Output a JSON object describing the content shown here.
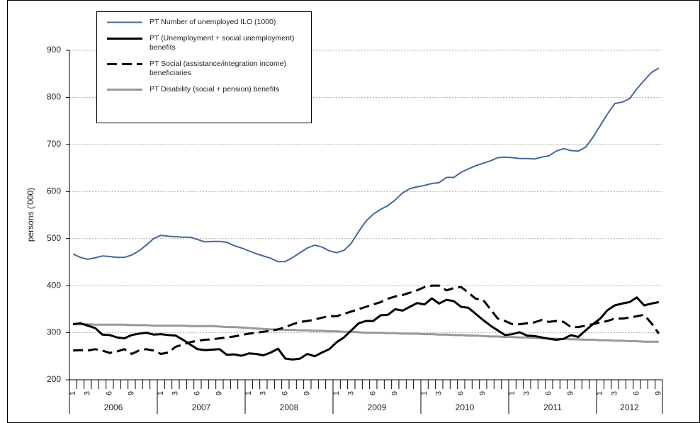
{
  "chart_data": {
    "type": "line",
    "ylabel": "persons ('000)",
    "ylim": [
      200,
      900
    ],
    "yticks": [
      200,
      300,
      400,
      500,
      600,
      700,
      800,
      900
    ],
    "grid": true,
    "categories": [
      "1",
      null,
      "3",
      null,
      null,
      "6",
      null,
      null,
      "9",
      null,
      null,
      null,
      "1",
      null,
      "3",
      null,
      null,
      "6",
      null,
      null,
      "9",
      null,
      null,
      null,
      "1",
      null,
      "3",
      null,
      null,
      "6",
      null,
      null,
      "9",
      null,
      null,
      null,
      "1",
      null,
      "3",
      null,
      null,
      "6",
      null,
      null,
      "9",
      null,
      null,
      null,
      "1",
      null,
      "3",
      null,
      null,
      "6",
      null,
      null,
      "9",
      null,
      null,
      null,
      "1",
      null,
      "3",
      null,
      null,
      "6",
      null,
      null,
      "9",
      null,
      null,
      null,
      "1",
      null,
      "3",
      null,
      null,
      "6",
      null,
      null,
      "9"
    ],
    "x_groups": [
      "2006",
      "2007",
      "2008",
      "2009",
      "2010",
      "2011",
      "2012"
    ],
    "series": [
      {
        "name": "PT Number of unemployed ILO (1000)",
        "color": "#44689b",
        "style": "solid",
        "width": 2,
        "values": [
          467,
          460,
          456,
          459,
          463,
          462,
          460,
          460,
          465,
          474,
          486,
          500,
          507,
          505,
          504,
          503,
          503,
          498,
          493,
          494,
          494,
          492,
          485,
          480,
          474,
          468,
          463,
          458,
          451,
          451,
          460,
          470,
          480,
          486,
          482,
          474,
          470,
          475,
          490,
          515,
          537,
          552,
          562,
          570,
          582,
          597,
          606,
          610,
          613,
          617,
          619,
          630,
          630,
          641,
          648,
          655,
          660,
          665,
          672,
          673,
          672,
          670,
          670,
          669,
          673,
          676,
          686,
          691,
          687,
          686,
          694,
          715,
          740,
          765,
          787,
          790,
          797,
          818,
          836,
          853,
          862
        ]
      },
      {
        "name": "PT (Unemployment + social unemployment) benefits",
        "color": "#000000",
        "style": "solid",
        "width": 3,
        "values": [
          318,
          320,
          315,
          310,
          296,
          295,
          290,
          288,
          295,
          298,
          300,
          296,
          297,
          295,
          294,
          285,
          275,
          265,
          263,
          264,
          265,
          253,
          254,
          251,
          256,
          255,
          252,
          258,
          266,
          245,
          243,
          245,
          255,
          250,
          258,
          265,
          280,
          290,
          305,
          320,
          325,
          325,
          337,
          338,
          350,
          347,
          355,
          363,
          360,
          373,
          362,
          370,
          367,
          355,
          353,
          340,
          327,
          315,
          305,
          295,
          297,
          301,
          294,
          293,
          290,
          287,
          285,
          287,
          295,
          291,
          305,
          318,
          330,
          348,
          358,
          362,
          365,
          375,
          358,
          362,
          365
        ]
      },
      {
        "name": "PT Social (assistance/integration income) beneficiaries",
        "color": "#000000",
        "style": "dashed",
        "width": 3,
        "values": [
          262,
          263,
          262,
          265,
          262,
          257,
          260,
          265,
          255,
          262,
          265,
          262,
          255,
          258,
          270,
          275,
          280,
          283,
          285,
          286,
          288,
          290,
          292,
          295,
          298,
          300,
          302,
          304,
          307,
          312,
          318,
          323,
          325,
          328,
          332,
          335,
          335,
          340,
          345,
          350,
          355,
          360,
          365,
          372,
          377,
          380,
          385,
          390,
          397,
          400,
          400,
          390,
          395,
          397,
          385,
          372,
          370,
          350,
          330,
          325,
          318,
          318,
          320,
          322,
          327,
          323,
          325,
          323,
          312,
          312,
          315,
          318,
          322,
          325,
          330,
          330,
          332,
          335,
          338,
          320,
          298
        ]
      },
      {
        "name": "PT Disability (social + pension) benefits",
        "color": "#999999",
        "style": "solid",
        "width": 3,
        "values": [
          318,
          318,
          318,
          317,
          317,
          317,
          317,
          317,
          316,
          316,
          316,
          315,
          315,
          315,
          315,
          315,
          314,
          314,
          314,
          314,
          313,
          312,
          312,
          311,
          310,
          309,
          308,
          307,
          307,
          306,
          306,
          305,
          305,
          304,
          304,
          303,
          303,
          302,
          302,
          301,
          300,
          300,
          300,
          299,
          299,
          298,
          298,
          298,
          297,
          297,
          296,
          296,
          295,
          295,
          294,
          294,
          293,
          292,
          292,
          291,
          291,
          290,
          290,
          289,
          288,
          288,
          287,
          287,
          286,
          286,
          285,
          285,
          284,
          284,
          283,
          283,
          282,
          282,
          281,
          281,
          281
        ]
      }
    ]
  }
}
